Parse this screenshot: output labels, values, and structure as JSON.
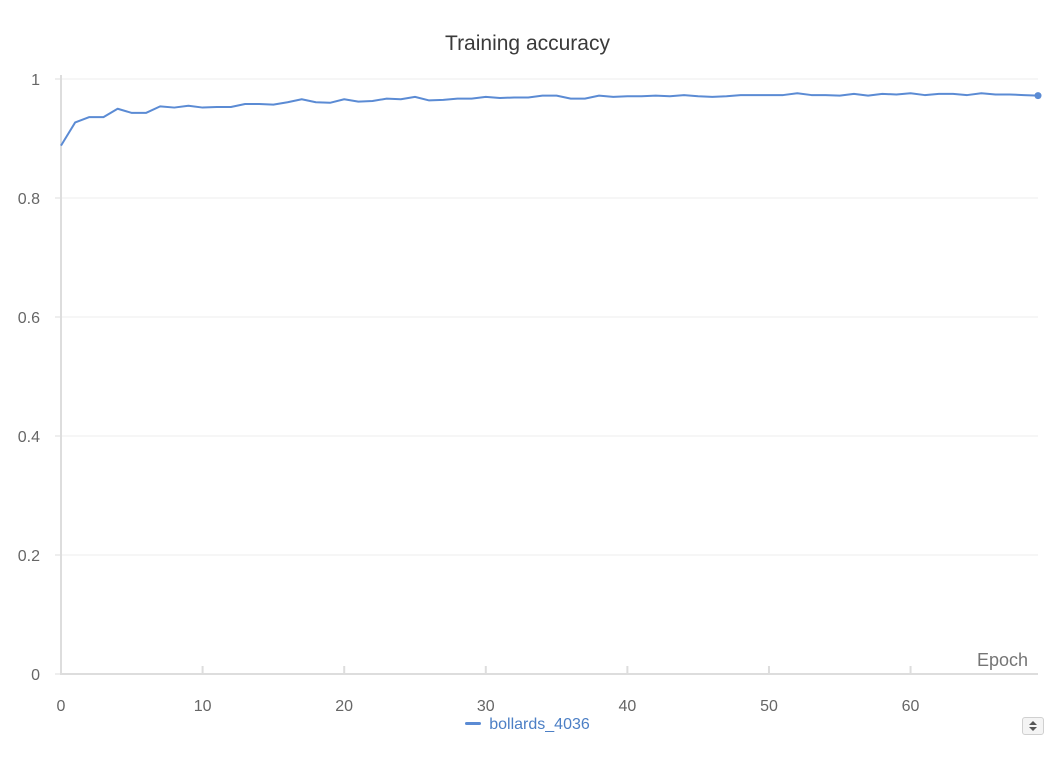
{
  "chart_data": {
    "type": "line",
    "title": "Training accuracy",
    "xlabel": "Epoch",
    "ylabel": "",
    "xlim": [
      0,
      69
    ],
    "ylim": [
      0,
      1
    ],
    "x_ticks": [
      0,
      10,
      20,
      30,
      40,
      50,
      60
    ],
    "y_ticks": [
      0,
      0.2,
      0.4,
      0.6,
      0.8,
      1
    ],
    "y_tick_labels": [
      "0",
      "0.2",
      "0.4",
      "0.6",
      "0.8",
      "1"
    ],
    "grid": true,
    "legend_position": "bottom-center",
    "series": [
      {
        "name": "bollards_4036",
        "color": "#5b8bd4",
        "x": [
          0,
          1,
          2,
          3,
          4,
          5,
          6,
          7,
          8,
          9,
          10,
          11,
          12,
          13,
          14,
          15,
          16,
          17,
          18,
          19,
          20,
          21,
          22,
          23,
          24,
          25,
          26,
          27,
          28,
          29,
          30,
          31,
          32,
          33,
          34,
          35,
          36,
          37,
          38,
          39,
          40,
          41,
          42,
          43,
          44,
          45,
          46,
          47,
          48,
          49,
          50,
          51,
          52,
          53,
          54,
          55,
          56,
          57,
          58,
          59,
          60,
          61,
          62,
          63,
          64,
          65,
          66,
          67,
          68,
          69
        ],
        "values": [
          0.888,
          0.927,
          0.936,
          0.936,
          0.95,
          0.943,
          0.943,
          0.954,
          0.952,
          0.955,
          0.952,
          0.953,
          0.953,
          0.958,
          0.958,
          0.957,
          0.961,
          0.966,
          0.961,
          0.96,
          0.966,
          0.962,
          0.963,
          0.967,
          0.966,
          0.97,
          0.964,
          0.965,
          0.967,
          0.967,
          0.97,
          0.968,
          0.969,
          0.969,
          0.972,
          0.972,
          0.967,
          0.967,
          0.972,
          0.97,
          0.971,
          0.971,
          0.972,
          0.971,
          0.973,
          0.971,
          0.97,
          0.971,
          0.973,
          0.973,
          0.973,
          0.973,
          0.976,
          0.973,
          0.973,
          0.972,
          0.975,
          0.972,
          0.975,
          0.974,
          0.976,
          0.973,
          0.975,
          0.975,
          0.973,
          0.976,
          0.974,
          0.974,
          0.973,
          0.972
        ]
      }
    ]
  }
}
